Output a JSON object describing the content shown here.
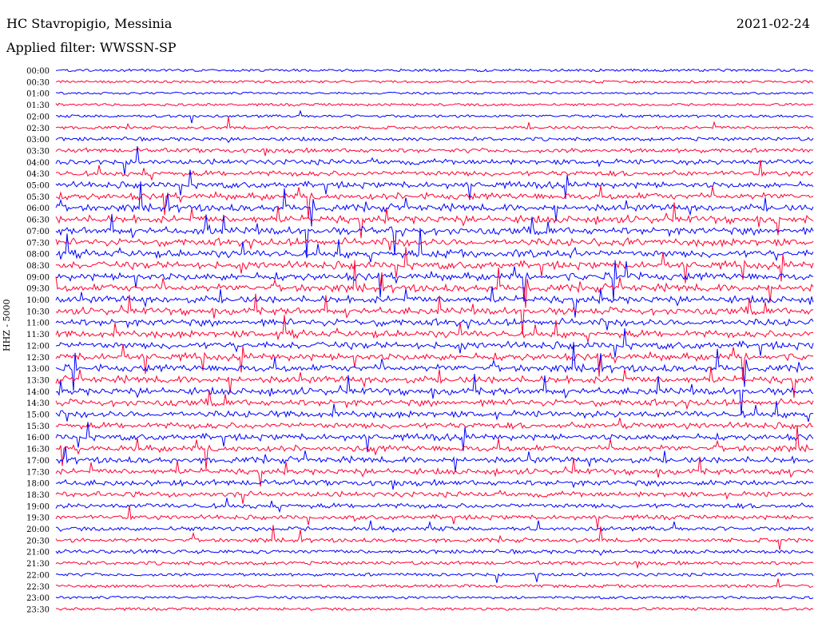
{
  "header": {
    "station": "HC Stavropigio, Messinia",
    "date": "2021-02-24",
    "filter": "Applied filter: WWSSN-SP"
  },
  "chart_data": {
    "type": "line",
    "title": "HC Stavropigio, Messinia",
    "ylabel": "HHZ - 5000",
    "rows": [
      "00:00",
      "00:30",
      "01:00",
      "01:30",
      "02:00",
      "02:30",
      "03:00",
      "03:30",
      "04:00",
      "04:30",
      "05:00",
      "05:30",
      "06:00",
      "06:30",
      "07:00",
      "07:30",
      "08:00",
      "08:30",
      "09:00",
      "09:30",
      "10:00",
      "10:30",
      "11:00",
      "11:30",
      "12:00",
      "12:30",
      "13:00",
      "13:30",
      "14:00",
      "14:30",
      "15:00",
      "15:30",
      "16:00",
      "16:30",
      "17:00",
      "17:30",
      "18:00",
      "18:30",
      "19:00",
      "19:30",
      "20:00",
      "20:30",
      "21:00",
      "21:30",
      "22:00",
      "22:30",
      "23:00",
      "23:30"
    ],
    "series_colors": [
      "#0000ff",
      "#ff0033"
    ],
    "row_activity": [
      0.15,
      0.12,
      0.08,
      0.15,
      0.2,
      0.25,
      0.4,
      0.6,
      0.8,
      0.8,
      1.0,
      1.1,
      1.2,
      1.3,
      1.3,
      1.3,
      1.3,
      1.3,
      1.3,
      1.3,
      1.2,
      1.2,
      1.2,
      1.2,
      1.2,
      1.2,
      1.2,
      1.2,
      1.2,
      1.1,
      1.1,
      1.0,
      1.0,
      1.0,
      1.0,
      0.9,
      0.9,
      0.8,
      0.7,
      0.6,
      0.55,
      0.5,
      0.45,
      0.4,
      0.3,
      0.25,
      0.2,
      0.2
    ]
  }
}
